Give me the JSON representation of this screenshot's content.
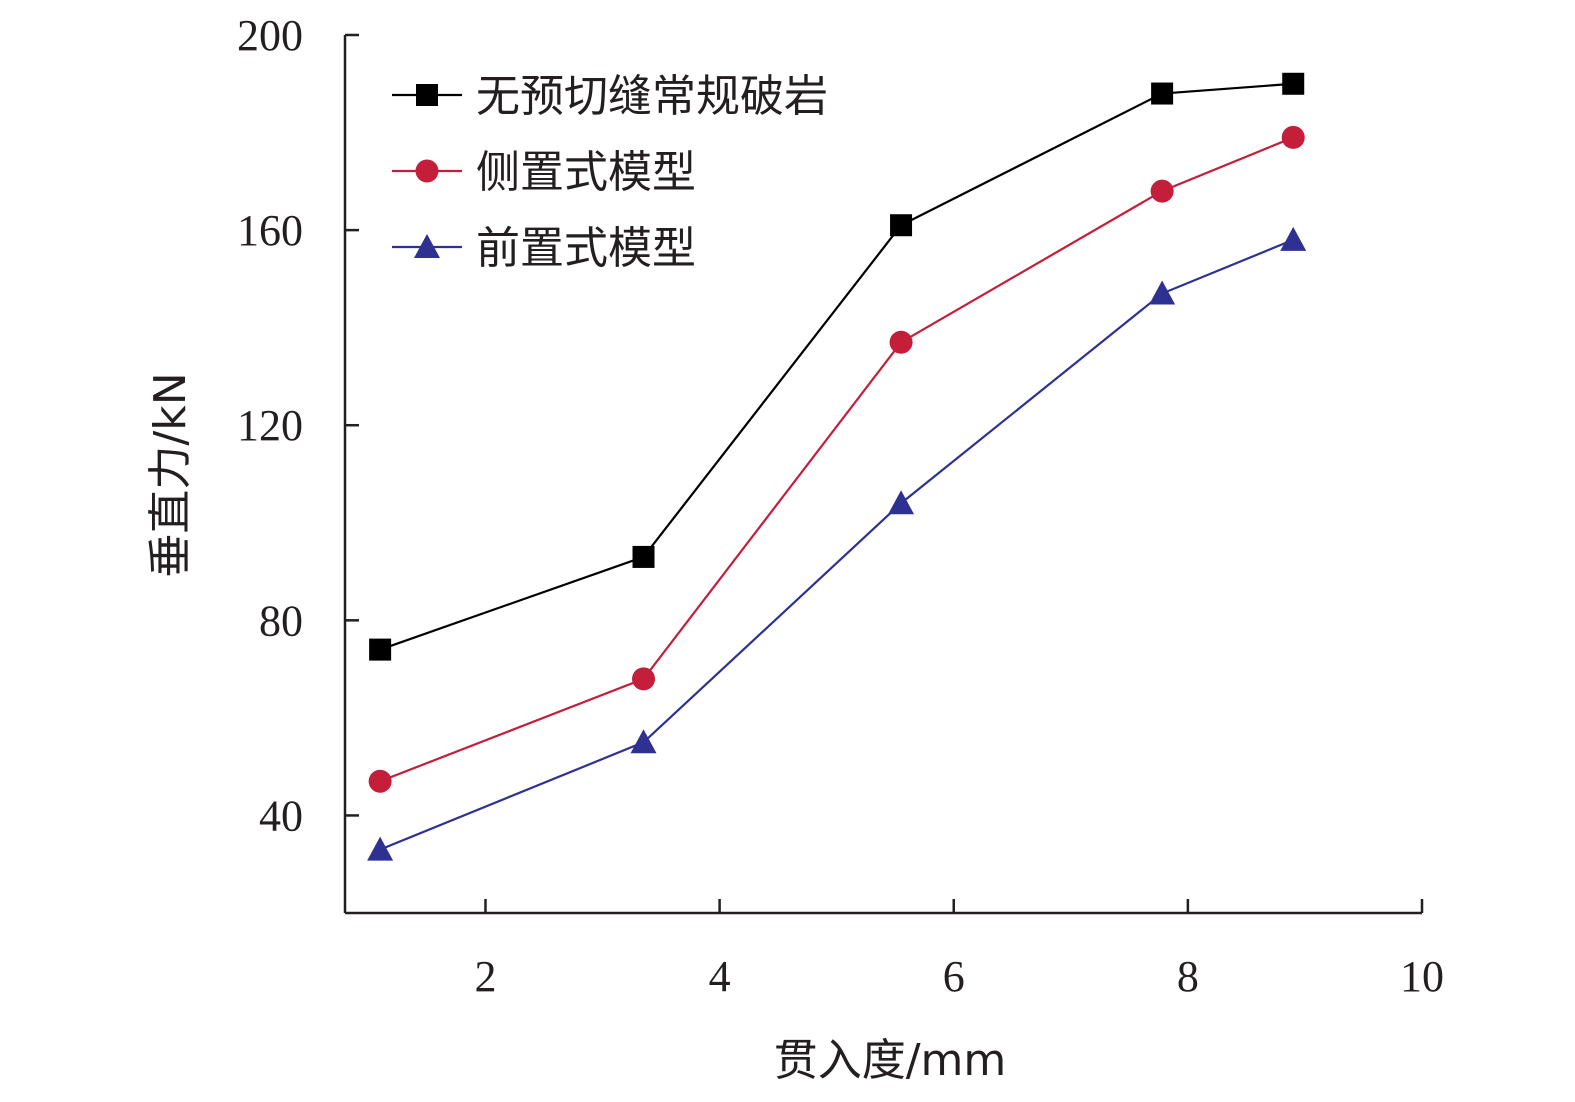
{
  "chart_data": {
    "type": "line",
    "xlabel": "贯入度/mm",
    "ylabel": "垂直力/kN",
    "xlim": [
      0.8,
      10
    ],
    "ylim": [
      20,
      200
    ],
    "xticks": [
      2,
      4,
      6,
      8,
      10
    ],
    "yticks": [
      40,
      80,
      120,
      160,
      200
    ],
    "xtick_labels": [
      "2",
      "4",
      "6",
      "8",
      "10"
    ],
    "ytick_labels": [
      "40",
      "80",
      "120",
      "160",
      "200"
    ],
    "grid": false,
    "legend_position": "top-left",
    "series": [
      {
        "name": "无预切缝常规破岩",
        "marker": "square",
        "color": "#000000",
        "x": [
          1.1,
          3.35,
          5.55,
          7.78,
          8.9
        ],
        "y": [
          74,
          93,
          161,
          188,
          190
        ]
      },
      {
        "name": "侧置式模型",
        "marker": "circle",
        "color": "#c41e3a",
        "x": [
          1.1,
          3.35,
          5.55,
          7.78,
          8.9
        ],
        "y": [
          47,
          68,
          137,
          168,
          179
        ]
      },
      {
        "name": "前置式模型",
        "marker": "triangle",
        "color": "#2e3192",
        "x": [
          1.1,
          3.35,
          5.55,
          7.78,
          8.9
        ],
        "y": [
          33,
          55,
          104,
          147,
          158
        ]
      }
    ]
  }
}
